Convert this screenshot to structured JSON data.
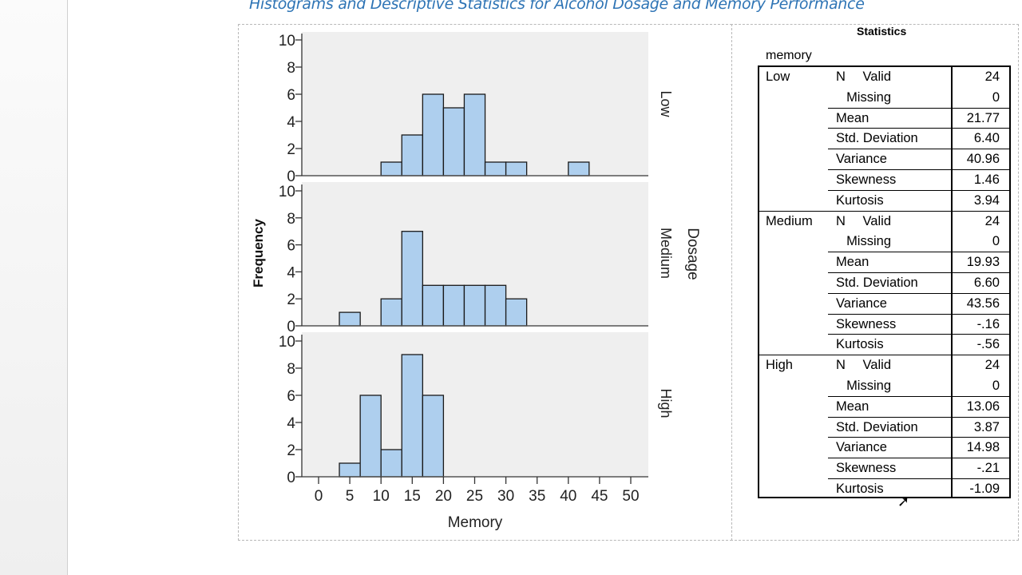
{
  "document": {
    "title": "Histograms and Descriptive Statistics for Alcohol Dosage and Memory Performance"
  },
  "chart_data": {
    "type": "bar",
    "subtype": "paneled histogram",
    "xlabel": "Memory",
    "ylabel": "Frequency",
    "panel_variable_label": "Dosage",
    "xlim": [
      -2.5,
      52.5
    ],
    "ylim": [
      0,
      10
    ],
    "x_ticks": [
      "0",
      "5",
      "10",
      "15",
      "20",
      "25",
      "30",
      "35",
      "40",
      "45",
      "50"
    ],
    "y_ticks": [
      "0",
      "2",
      "4",
      "6",
      "8",
      "10"
    ],
    "bin_edges": [
      3.33,
      6.67,
      10,
      13.33,
      16.67,
      20,
      23.33,
      26.67,
      30,
      33.33,
      36.67,
      40,
      43.33
    ],
    "bar_color": "#aecfee",
    "panel_background": "#efefef",
    "panels": [
      {
        "name": "Low",
        "counts": [
          0,
          0,
          1,
          3,
          6,
          5,
          6,
          1,
          1,
          0,
          0,
          1
        ]
      },
      {
        "name": "Medium",
        "counts": [
          1,
          0,
          2,
          7,
          3,
          3,
          3,
          3,
          2,
          0,
          0,
          0
        ]
      },
      {
        "name": "High",
        "counts": [
          1,
          6,
          2,
          9,
          6,
          0,
          0,
          0,
          0,
          0,
          0,
          0
        ]
      }
    ],
    "grid": false
  },
  "statistics": {
    "title": "Statistics",
    "variable": "memory",
    "groups": [
      {
        "name": "Low",
        "rows": [
          {
            "stat": "N",
            "sub": "Valid",
            "value": "24"
          },
          {
            "stat": "",
            "sub": "Missing",
            "value": "0"
          },
          {
            "stat": "Mean",
            "sub": "",
            "value": "21.77"
          },
          {
            "stat": "Std. Deviation",
            "sub": "",
            "value": "6.40"
          },
          {
            "stat": "Variance",
            "sub": "",
            "value": "40.96"
          },
          {
            "stat": "Skewness",
            "sub": "",
            "value": "1.46"
          },
          {
            "stat": "Kurtosis",
            "sub": "",
            "value": "3.94"
          }
        ]
      },
      {
        "name": "Medium",
        "rows": [
          {
            "stat": "N",
            "sub": "Valid",
            "value": "24"
          },
          {
            "stat": "",
            "sub": "Missing",
            "value": "0"
          },
          {
            "stat": "Mean",
            "sub": "",
            "value": "19.93"
          },
          {
            "stat": "Std. Deviation",
            "sub": "",
            "value": "6.60"
          },
          {
            "stat": "Variance",
            "sub": "",
            "value": "43.56"
          },
          {
            "stat": "Skewness",
            "sub": "",
            "value": "-.16"
          },
          {
            "stat": "Kurtosis",
            "sub": "",
            "value": "-.56"
          }
        ]
      },
      {
        "name": "High",
        "rows": [
          {
            "stat": "N",
            "sub": "Valid",
            "value": "24"
          },
          {
            "stat": "",
            "sub": "Missing",
            "value": "0"
          },
          {
            "stat": "Mean",
            "sub": "",
            "value": "13.06"
          },
          {
            "stat": "Std. Deviation",
            "sub": "",
            "value": "3.87"
          },
          {
            "stat": "Variance",
            "sub": "",
            "value": "14.98"
          },
          {
            "stat": "Skewness",
            "sub": "",
            "value": "-.21"
          },
          {
            "stat": "Kurtosis",
            "sub": "",
            "value": "-1.09"
          }
        ]
      }
    ]
  }
}
